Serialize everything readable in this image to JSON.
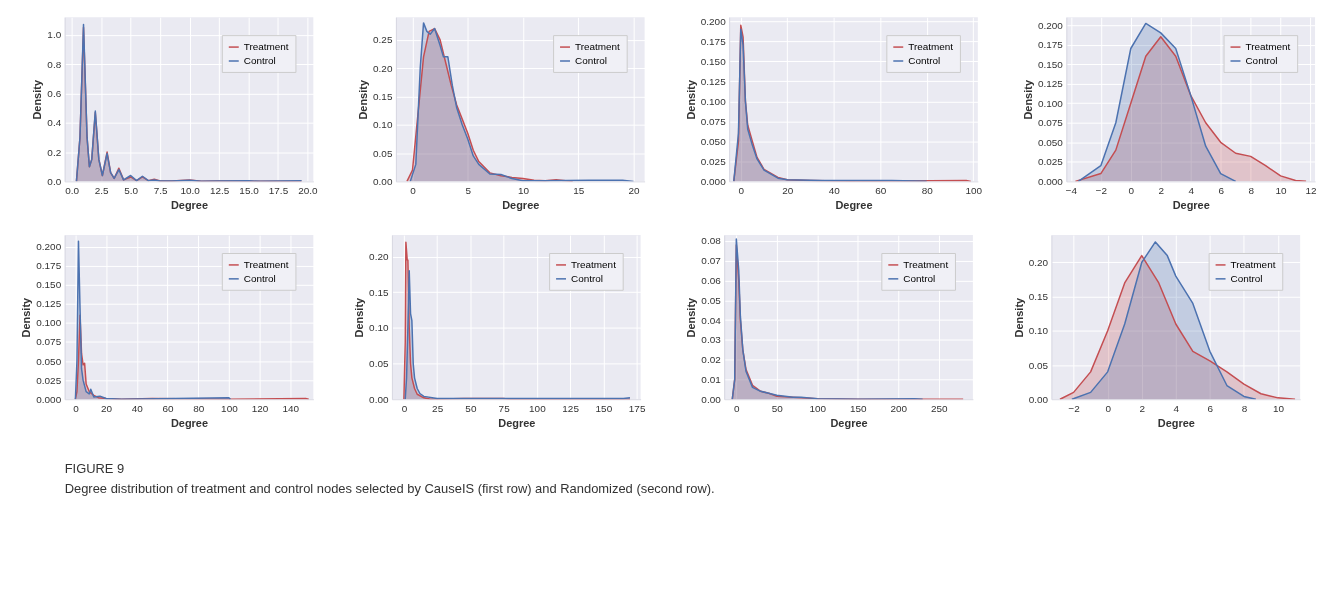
{
  "chart_data": [
    {
      "type": "area",
      "xlabel": "Degree",
      "ylabel": "Density",
      "legend": "top right",
      "grid": true,
      "xlim": [
        -0.6,
        20.5
      ],
      "xticks": [
        {
          "value": 0,
          "label": "0.0"
        },
        {
          "value": 2.5,
          "label": "2.5"
        },
        {
          "value": 5,
          "label": "5.0"
        },
        {
          "value": 7.5,
          "label": "7.5"
        },
        {
          "value": 10,
          "label": "10.0"
        },
        {
          "value": 12.5,
          "label": "12.5"
        },
        {
          "value": 15,
          "label": "15.0"
        },
        {
          "value": 17.5,
          "label": "17.5"
        },
        {
          "value": 20,
          "label": "20.0"
        }
      ],
      "ylim": [
        0,
        1.12
      ],
      "yticks": [
        {
          "value": 0,
          "label": "0.0"
        },
        {
          "value": 0.2,
          "label": "0.2"
        },
        {
          "value": 0.4,
          "label": "0.4"
        },
        {
          "value": 0.6,
          "label": "0.6"
        },
        {
          "value": 0.8,
          "label": "0.8"
        },
        {
          "value": 1,
          "label": "1.0"
        }
      ],
      "series": [
        {
          "name": "Treatment",
          "color": "#c44e52",
          "x": [
            0.4,
            0.7,
            1.0,
            1.3,
            1.5,
            1.7,
            2.0,
            2.3,
            2.6,
            3.0,
            3.3,
            3.6,
            4.0,
            4.4,
            5.0,
            5.5,
            6.0,
            6.5,
            7.0,
            7.5,
            8.5,
            10.0,
            11.0,
            12.5,
            15.0,
            16.0,
            19.5
          ],
          "values": [
            0,
            0.3,
            1.05,
            0.3,
            0.1,
            0.15,
            0.47,
            0.15,
            0.04,
            0.2,
            0.06,
            0.02,
            0.09,
            0.01,
            0.03,
            0.005,
            0.03,
            0.005,
            0.015,
            0.002,
            0.002,
            0.01,
            0.001,
            0.002,
            0.003,
            0,
            0.001
          ]
        },
        {
          "name": "Control",
          "color": "#4c72b0",
          "x": [
            0.4,
            0.7,
            1.0,
            1.3,
            1.5,
            1.7,
            2.0,
            2.3,
            2.6,
            3.0,
            3.3,
            3.6,
            4.0,
            4.4,
            5.0,
            5.5,
            6.0,
            6.5,
            7.0,
            7.5,
            8.5,
            10.0,
            11.0,
            12.5,
            15.0,
            16.0,
            19.5
          ],
          "values": [
            0,
            0.3,
            1.07,
            0.3,
            0.1,
            0.15,
            0.48,
            0.15,
            0.04,
            0.19,
            0.06,
            0.02,
            0.08,
            0.01,
            0.04,
            0.005,
            0.035,
            0.005,
            0.01,
            0.002,
            0.002,
            0.008,
            0.001,
            0.002,
            0.004,
            0,
            0.004
          ]
        }
      ]
    },
    {
      "type": "area",
      "xlabel": "Degree",
      "ylabel": "Density",
      "legend": "top right",
      "grid": true,
      "xlim": [
        -1.5,
        21
      ],
      "xticks": [
        0,
        5,
        10,
        15,
        20
      ],
      "ylim": [
        0,
        0.29
      ],
      "yticks": [
        {
          "value": 0,
          "label": "0.00"
        },
        {
          "value": 0.05,
          "label": "0.05"
        },
        {
          "value": 0.1,
          "label": "0.10"
        },
        {
          "value": 0.15,
          "label": "0.15"
        },
        {
          "value": 0.2,
          "label": "0.20"
        },
        {
          "value": 0.25,
          "label": "0.25"
        }
      ],
      "series": [
        {
          "name": "Treatment",
          "color": "#c44e52",
          "x": [
            -0.5,
            0,
            0.5,
            1.0,
            1.5,
            2.0,
            2.5,
            3.0,
            3.5,
            4.0,
            4.5,
            5.0,
            5.5,
            6.0,
            7.0,
            8.0,
            9.0,
            10,
            11,
            12,
            13,
            14.5
          ],
          "values": [
            0,
            0.02,
            0.12,
            0.22,
            0.265,
            0.27,
            0.25,
            0.21,
            0.17,
            0.135,
            0.11,
            0.085,
            0.055,
            0.035,
            0.015,
            0.01,
            0.007,
            0.005,
            0.002,
            0.001,
            0.003,
            0
          ]
        },
        {
          "name": "Control",
          "color": "#4c72b0",
          "x": [
            -0.2,
            0.3,
            0.7,
            1.0,
            1.3,
            1.6,
            2.0,
            2.5,
            2.8,
            3.2,
            3.6,
            4.0,
            4.5,
            5.0,
            5.5,
            6.0,
            7.0,
            8.0,
            9.0,
            10,
            12,
            16,
            19,
            20
          ],
          "values": [
            0,
            0.03,
            0.2,
            0.28,
            0.265,
            0.26,
            0.27,
            0.24,
            0.22,
            0.22,
            0.17,
            0.13,
            0.1,
            0.075,
            0.045,
            0.03,
            0.013,
            0.012,
            0.005,
            0.001,
            0.001,
            0.002,
            0.002,
            0
          ]
        }
      ]
    },
    {
      "type": "area",
      "xlabel": "Degree",
      "ylabel": "Density",
      "legend": "top right",
      "grid": true,
      "xlim": [
        -5,
        102
      ],
      "xticks": [
        0,
        20,
        40,
        60,
        80,
        100
      ],
      "ylim": [
        0,
        0.205
      ],
      "yticks": [
        {
          "value": 0,
          "label": "0.000"
        },
        {
          "value": 0.025,
          "label": "0.025"
        },
        {
          "value": 0.05,
          "label": "0.050"
        },
        {
          "value": 0.075,
          "label": "0.075"
        },
        {
          "value": 0.1,
          "label": "0.100"
        },
        {
          "value": 0.125,
          "label": "0.125"
        },
        {
          "value": 0.15,
          "label": "0.150"
        },
        {
          "value": 0.175,
          "label": "0.175"
        },
        {
          "value": 0.2,
          "label": "0.200"
        }
      ],
      "series": [
        {
          "name": "Treatment",
          "color": "#c44e52",
          "x": [
            -3,
            -1,
            0,
            1,
            2,
            3,
            5,
            7,
            10,
            13,
            16,
            20,
            30,
            50,
            97,
            99
          ],
          "values": [
            0,
            0.05,
            0.195,
            0.18,
            0.1,
            0.07,
            0.05,
            0.03,
            0.015,
            0.01,
            0.005,
            0.002,
            0.001,
            0,
            0.001,
            0
          ]
        },
        {
          "name": "Control",
          "color": "#4c72b0",
          "x": [
            -3,
            -1,
            0,
            1,
            2,
            3,
            5,
            7,
            10,
            13,
            16,
            20,
            35,
            45,
            65,
            80
          ],
          "values": [
            0,
            0.06,
            0.19,
            0.17,
            0.1,
            0.065,
            0.045,
            0.028,
            0.014,
            0.009,
            0.004,
            0.002,
            0.001,
            0.001,
            0.001,
            0
          ]
        }
      ]
    },
    {
      "type": "area",
      "xlabel": "Degree",
      "ylabel": "Density",
      "legend": "top right",
      "grid": true,
      "xlim": [
        -4.3,
        12.3
      ],
      "xticks": [
        -4,
        -2,
        0,
        2,
        4,
        6,
        8,
        10,
        12
      ],
      "ylim": [
        0,
        0.21
      ],
      "yticks": [
        {
          "value": 0,
          "label": "0.000"
        },
        {
          "value": 0.025,
          "label": "0.025"
        },
        {
          "value": 0.05,
          "label": "0.050"
        },
        {
          "value": 0.075,
          "label": "0.075"
        },
        {
          "value": 0.1,
          "label": "0.100"
        },
        {
          "value": 0.125,
          "label": "0.125"
        },
        {
          "value": 0.15,
          "label": "0.150"
        },
        {
          "value": 0.175,
          "label": "0.175"
        },
        {
          "value": 0.2,
          "label": "0.200"
        }
      ],
      "series": [
        {
          "name": "Treatment",
          "color": "#c44e52",
          "x": [
            -3.7,
            -2,
            -1,
            0,
            1,
            2,
            3,
            4,
            5,
            6,
            7,
            8,
            9,
            10,
            11,
            11.7
          ],
          "values": [
            0,
            0.01,
            0.04,
            0.1,
            0.16,
            0.185,
            0.16,
            0.11,
            0.075,
            0.05,
            0.036,
            0.032,
            0.02,
            0.007,
            0.001,
            0
          ]
        },
        {
          "name": "Control",
          "color": "#4c72b0",
          "x": [
            -3.5,
            -2,
            -1,
            0,
            1,
            2,
            3,
            4,
            5,
            6,
            7
          ],
          "values": [
            0,
            0.02,
            0.075,
            0.17,
            0.202,
            0.19,
            0.17,
            0.11,
            0.045,
            0.01,
            0
          ]
        }
      ]
    },
    {
      "type": "area",
      "xlabel": "Degree",
      "ylabel": "Density",
      "legend": "top right",
      "grid": true,
      "xlim": [
        -7,
        155
      ],
      "xticks": [
        0,
        20,
        40,
        60,
        80,
        100,
        120,
        140
      ],
      "ylim": [
        0,
        0.215
      ],
      "yticks": [
        {
          "value": 0,
          "label": "0.000"
        },
        {
          "value": 0.025,
          "label": "0.025"
        },
        {
          "value": 0.05,
          "label": "0.050"
        },
        {
          "value": 0.075,
          "label": "0.075"
        },
        {
          "value": 0.1,
          "label": "0.100"
        },
        {
          "value": 0.125,
          "label": "0.125"
        },
        {
          "value": 0.15,
          "label": "0.150"
        },
        {
          "value": 0.175,
          "label": "0.175"
        },
        {
          "value": 0.2,
          "label": "0.200"
        }
      ],
      "series": [
        {
          "name": "Treatment",
          "color": "#c44e52",
          "x": [
            0,
            1,
            2,
            3,
            4,
            5,
            6,
            7,
            9,
            12,
            15,
            20,
            30,
            50,
            100,
            150,
            152
          ],
          "values": [
            0,
            0.01,
            0.05,
            0.11,
            0.06,
            0.045,
            0.047,
            0.02,
            0.01,
            0.005,
            0.002,
            0.001,
            0,
            0.001,
            0,
            0.001,
            0
          ]
        },
        {
          "name": "Control",
          "color": "#4c72b0",
          "x": [
            0,
            1,
            2,
            3,
            4,
            5,
            7,
            9,
            10,
            12,
            16,
            20,
            30,
            100,
            101
          ],
          "values": [
            0,
            0.05,
            0.207,
            0.12,
            0.04,
            0.025,
            0.01,
            0.007,
            0.013,
            0.003,
            0.004,
            0.001,
            0,
            0.002,
            0
          ]
        }
      ]
    },
    {
      "type": "area",
      "xlabel": "Degree",
      "ylabel": "Density",
      "legend": "top right",
      "grid": true,
      "xlim": [
        -9,
        178
      ],
      "xticks": [
        0,
        25,
        50,
        75,
        100,
        125,
        150,
        175
      ],
      "ylim": [
        0,
        0.23
      ],
      "yticks": [
        {
          "value": 0,
          "label": "0.00"
        },
        {
          "value": 0.05,
          "label": "0.05"
        },
        {
          "value": 0.1,
          "label": "0.10"
        },
        {
          "value": 0.15,
          "label": "0.15"
        },
        {
          "value": 0.2,
          "label": "0.20"
        }
      ],
      "series": [
        {
          "name": "Treatment",
          "color": "#c44e52",
          "x": [
            0,
            1,
            1.5,
            2.5,
            3,
            4,
            5,
            6,
            8,
            10,
            15,
            20,
            45,
            75,
            80,
            170
          ],
          "values": [
            0,
            0.08,
            0.22,
            0.195,
            0.195,
            0.1,
            0.05,
            0.03,
            0.015,
            0.007,
            0.002,
            0,
            0.001,
            0.001,
            0,
            0
          ]
        },
        {
          "name": "Control",
          "color": "#4c72b0",
          "x": [
            1,
            2,
            3,
            4,
            5,
            6,
            7,
            8,
            10,
            12,
            15,
            25,
            40,
            165,
            170
          ],
          "values": [
            0,
            0.03,
            0.1,
            0.18,
            0.12,
            0.11,
            0.05,
            0.03,
            0.015,
            0.008,
            0.004,
            0.001,
            0.001,
            0.001,
            0.002
          ]
        }
      ]
    },
    {
      "type": "area",
      "xlabel": "Degree",
      "ylabel": "Density",
      "legend": "top right",
      "grid": true,
      "xlim": [
        -15,
        292
      ],
      "xticks": [
        0,
        50,
        100,
        150,
        200,
        250
      ],
      "ylim": [
        0,
        0.083
      ],
      "yticks": [
        {
          "value": 0,
          "label": "0.00"
        },
        {
          "value": 0.01,
          "label": "0.01"
        },
        {
          "value": 0.02,
          "label": "0.02"
        },
        {
          "value": 0.03,
          "label": "0.03"
        },
        {
          "value": 0.04,
          "label": "0.04"
        },
        {
          "value": 0.05,
          "label": "0.05"
        },
        {
          "value": 0.06,
          "label": "0.06"
        },
        {
          "value": 0.07,
          "label": "0.07"
        },
        {
          "value": 0.08,
          "label": "0.08"
        }
      ],
      "series": [
        {
          "name": "Treatment",
          "color": "#c44e52",
          "x": [
            -5,
            -2,
            0,
            3,
            5,
            8,
            12,
            20,
            30,
            40,
            50,
            70,
            100,
            150,
            280
          ],
          "values": [
            0,
            0.01,
            0.078,
            0.06,
            0.04,
            0.025,
            0.015,
            0.007,
            0.004,
            0.003,
            0.0015,
            0.001,
            0.0003,
            0,
            0
          ]
        },
        {
          "name": "Control",
          "color": "#4c72b0",
          "x": [
            -5,
            -2,
            0,
            3,
            5,
            8,
            12,
            20,
            30,
            40,
            50,
            70,
            80,
            100,
            150,
            220,
            230
          ],
          "values": [
            0,
            0.01,
            0.081,
            0.065,
            0.042,
            0.025,
            0.014,
            0.006,
            0.004,
            0.003,
            0.002,
            0.001,
            0.001,
            0.0003,
            0,
            0.0003,
            0
          ]
        }
      ]
    },
    {
      "type": "area",
      "xlabel": "Degree",
      "ylabel": "Density",
      "legend": "top right",
      "grid": true,
      "xlim": [
        -3.3,
        11.3
      ],
      "xticks": [
        -2,
        0,
        2,
        4,
        6,
        8,
        10
      ],
      "ylim": [
        0,
        0.24
      ],
      "yticks": [
        {
          "value": 0,
          "label": "0.00"
        },
        {
          "value": 0.05,
          "label": "0.05"
        },
        {
          "value": 0.1,
          "label": "0.10"
        },
        {
          "value": 0.15,
          "label": "0.15"
        },
        {
          "value": 0.2,
          "label": "0.20"
        }
      ],
      "annotations": [
        "FIGURE 9",
        "Degree distribution of treatment and control nodes selected by CauseIS (first row) and Randomized (second row)."
      ],
      "series": [
        {
          "name": "Treatment",
          "color": "#c44e52",
          "x": [
            -2.8,
            -2,
            -1,
            0,
            1,
            2,
            3,
            4,
            5,
            6,
            7,
            8,
            9,
            10,
            11
          ],
          "values": [
            0,
            0.01,
            0.04,
            0.1,
            0.17,
            0.21,
            0.17,
            0.11,
            0.07,
            0.056,
            0.04,
            0.022,
            0.008,
            0.002,
            0
          ]
        },
        {
          "name": "Control",
          "color": "#4c72b0",
          "x": [
            -2.1,
            -1,
            0,
            1,
            2,
            2.8,
            3.5,
            4,
            5,
            6,
            7,
            8,
            8.7
          ],
          "values": [
            0,
            0.01,
            0.04,
            0.11,
            0.2,
            0.23,
            0.21,
            0.18,
            0.14,
            0.07,
            0.02,
            0.004,
            0
          ]
        }
      ]
    }
  ]
}
